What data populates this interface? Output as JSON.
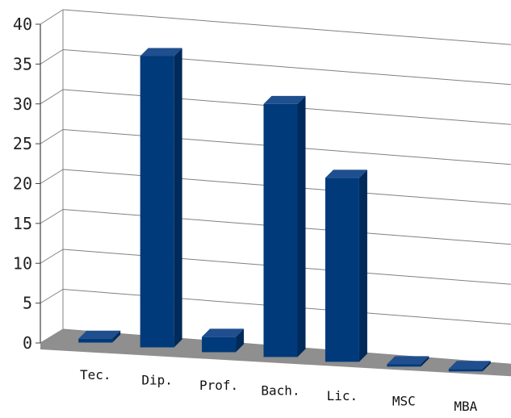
{
  "chart_data": {
    "type": "bar",
    "categories": [
      "Tec.",
      "Dip.",
      "Prof.",
      "Bach.",
      "Lic.",
      "MSC",
      "MBA"
    ],
    "values": [
      0.5,
      38,
      2,
      33,
      24,
      0.3,
      0.1
    ],
    "ylim": [
      0,
      40
    ],
    "yticks": [
      "0",
      "5",
      "10",
      "15",
      "20",
      "25",
      "30",
      "35",
      "40"
    ],
    "grid": true,
    "colors": {
      "bar_front": "#003a7a",
      "bar_top": "#1f4f8f",
      "bar_side": "#002a5a",
      "floor": "#8f8f8f",
      "grid": "#808080"
    }
  }
}
